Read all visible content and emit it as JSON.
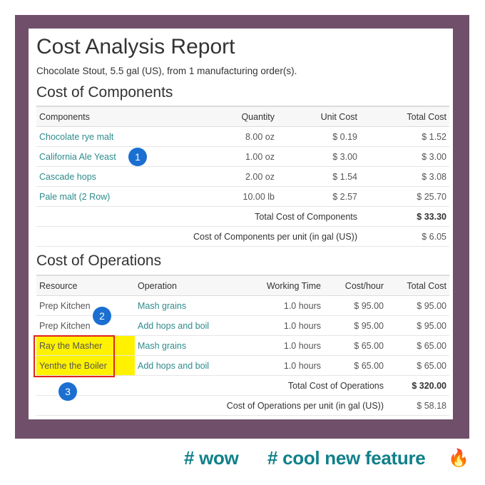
{
  "report": {
    "title": "Cost Analysis Report",
    "subtitle": "Chocolate Stout, 5.5 gal (US), from 1 manufacturing order(s)."
  },
  "components": {
    "section_title": "Cost of Components",
    "headers": [
      "Components",
      "Quantity",
      "Unit Cost",
      "Total Cost"
    ],
    "rows": [
      {
        "name": "Chocolate rye malt",
        "quantity": "8.00 oz",
        "unit_cost": "$ 0.19",
        "total_cost": "$ 1.52"
      },
      {
        "name": "California Ale Yeast",
        "quantity": "1.00 oz",
        "unit_cost": "$ 3.00",
        "total_cost": "$ 3.00"
      },
      {
        "name": "Cascade hops",
        "quantity": "2.00 oz",
        "unit_cost": "$ 1.54",
        "total_cost": "$ 3.08"
      },
      {
        "name": "Pale malt (2 Row)",
        "quantity": "10.00 lb",
        "unit_cost": "$ 2.57",
        "total_cost": "$ 25.70"
      }
    ],
    "total_label": "Total Cost of Components",
    "total_value": "$ 33.30",
    "per_unit_label": "Cost of Components per unit (in gal (US))",
    "per_unit_value": "$ 6.05"
  },
  "operations": {
    "section_title": "Cost of Operations",
    "headers": [
      "Resource",
      "Operation",
      "Working Time",
      "Cost/hour",
      "Total Cost"
    ],
    "rows": [
      {
        "resource": "Prep Kitchen",
        "operation": "Mash grains",
        "time": "1.0 hours",
        "rate": "$ 95.00",
        "total": "$ 95.00"
      },
      {
        "resource": "Prep Kitchen",
        "operation": "Add hops and boil",
        "time": "1.0 hours",
        "rate": "$ 95.00",
        "total": "$ 95.00"
      },
      {
        "resource": "Ray the Masher",
        "operation": "Mash grains",
        "time": "1.0 hours",
        "rate": "$ 65.00",
        "total": "$ 65.00"
      },
      {
        "resource": "Yenthe the Boiler",
        "operation": "Add hops and boil",
        "time": "1.0 hours",
        "rate": "$ 65.00",
        "total": "$ 65.00"
      }
    ],
    "total_label": "Total Cost of Operations",
    "total_value": "$ 320.00",
    "per_unit_label": "Cost of Operations per unit (in gal (US))",
    "per_unit_value": "$ 58.18"
  },
  "markers": [
    "1",
    "2",
    "3"
  ],
  "hashtags": {
    "first": "# wow",
    "second": "# cool new feature",
    "emoji": "🔥"
  },
  "colors": {
    "frame": "#704f6a",
    "link": "#2e8b8b",
    "marker": "#1a6fd1",
    "highlight": "#fff200",
    "hashtag": "#11808a"
  }
}
